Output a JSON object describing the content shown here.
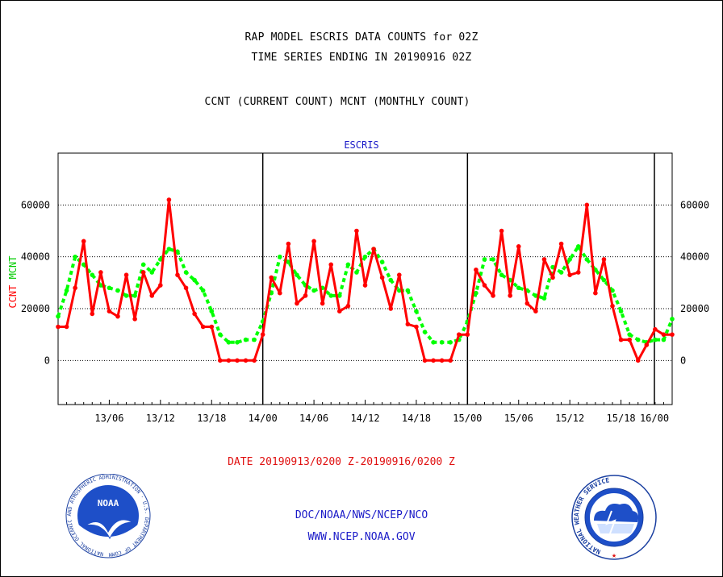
{
  "header": {
    "title_line1": "RAP MODEL ESCRIS DATA COUNTS for 02Z",
    "title_line2": "TIME SERIES ENDING IN 20190916 02Z",
    "subtitle": "CCNT (CURRENT COUNT) MCNT (MONTHLY COUNT)"
  },
  "footer": {
    "date_range": "DATE 20190913/0200 Z-20190916/0200 Z",
    "org_path": "DOC/NOAA/NWS/NCEP/NCO",
    "website": "WWW.NCEP.NOAA.GOV",
    "noaa_logo_text": "NOAA",
    "noaa_ring_text": "NATIONAL OCEANIC AND ATMOSPHERIC ADMINISTRATION · U.S. DEPARTMENT OF COMMERCE",
    "nws_ring_text": "NATIONAL WEATHER SERVICE"
  },
  "chart_data": {
    "type": "line",
    "title": "ESCRIS",
    "ylabel_left_parts": [
      "CCNT",
      "MCNT"
    ],
    "ylim": [
      -17000,
      80000
    ],
    "yticks": [
      0,
      20000,
      40000,
      60000
    ],
    "ytick_labels": [
      "0",
      "20000",
      "40000",
      "60000"
    ],
    "xlim": [
      0,
      72
    ],
    "x_tick_positions": [
      6,
      12,
      18,
      24,
      30,
      36,
      42,
      48,
      54,
      60,
      66,
      72
    ],
    "x_tick_labels": [
      "13/06",
      "13/12",
      "13/18",
      "14/00",
      "14/06",
      "14/12",
      "14/18",
      "15/00",
      "15/06",
      "15/12",
      "15/18",
      "16/00"
    ],
    "day_boundaries": [
      24,
      48,
      72
    ],
    "grid": true,
    "colors": {
      "ccnt": "#ff0000",
      "mcnt": "#00ff00",
      "ccnt_label": "#ff0000",
      "mcnt_label": "#00cc00",
      "title": "#1a1ac8",
      "frame": "#000000"
    },
    "series": [
      {
        "name": "CCNT",
        "values": [
          13000,
          13000,
          28000,
          46000,
          18000,
          34000,
          19000,
          17000,
          33000,
          16000,
          34000,
          25000,
          29000,
          62000,
          33000,
          28000,
          18000,
          13000,
          13000,
          0,
          0,
          0,
          0,
          0,
          10000,
          32000,
          26000,
          45000,
          22000,
          25000,
          46000,
          22000,
          37000,
          19000,
          21000,
          50000,
          29000,
          43000,
          32000,
          20000,
          33000,
          14000,
          13000,
          0,
          0,
          0,
          0,
          10000,
          10000,
          35000,
          29000,
          25000,
          50000,
          25000,
          44000,
          22000,
          19000,
          39000,
          32000,
          45000,
          33000,
          34000,
          60000,
          26000,
          39000,
          21000,
          8000,
          8000,
          0,
          6000,
          12000,
          10000,
          10000
        ]
      },
      {
        "name": "MCNT",
        "values": [
          17000,
          27000,
          40000,
          37000,
          33000,
          29000,
          28000,
          27000,
          25000,
          25000,
          37000,
          34000,
          39000,
          43000,
          42000,
          34000,
          31000,
          27000,
          19000,
          10000,
          7000,
          7000,
          8000,
          8000,
          15000,
          26000,
          40000,
          38000,
          33000,
          29000,
          27000,
          28000,
          25000,
          25000,
          37000,
          34000,
          40000,
          43000,
          38000,
          31000,
          27000,
          27000,
          19000,
          11000,
          7000,
          7000,
          7000,
          8000,
          15000,
          26000,
          39000,
          39000,
          33000,
          31000,
          28000,
          27000,
          25000,
          24000,
          36000,
          34000,
          39000,
          44000,
          39000,
          35000,
          31000,
          27000,
          19000,
          10000,
          8000,
          7000,
          8000,
          8000,
          16000
        ]
      }
    ]
  }
}
